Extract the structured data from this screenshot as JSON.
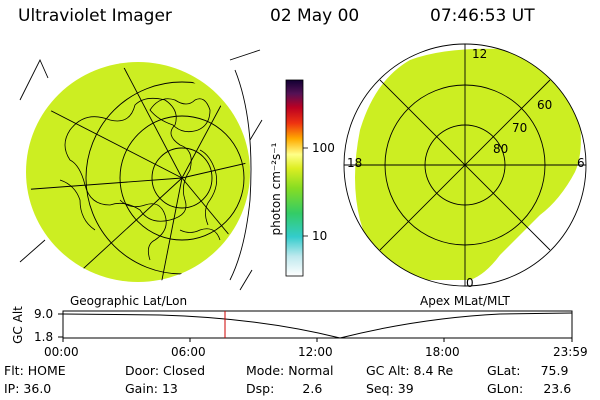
{
  "header": {
    "instrument": "Ultraviolet Imager",
    "date": "02 May 00",
    "time": "07:46:53 UT"
  },
  "colorbar": {
    "unit_label": "photon cm⁻²s⁻¹",
    "ticks": [
      "100",
      "10"
    ]
  },
  "panels": {
    "left_title": "Geographic Lat/Lon",
    "right_title": "Apex MLat/MLT",
    "mlt_labels": [
      "12",
      "18",
      "6",
      "0"
    ],
    "lat_labels": [
      "60",
      "70",
      "80"
    ]
  },
  "altitude_plot": {
    "ylabel": "GC Alt",
    "yticks": [
      "9.0",
      "1.8"
    ],
    "xticks": [
      "00:00",
      "06:00",
      "12:00",
      "18:00",
      "23:59"
    ],
    "current_time_marker": "07:46:53"
  },
  "status": {
    "flt": {
      "label": "Flt:",
      "value": "HOME"
    },
    "ip": {
      "label": "IP:",
      "value": "36.0"
    },
    "door": {
      "label": "Door:",
      "value": "Closed"
    },
    "gain": {
      "label": "Gain:",
      "value": "13"
    },
    "mode": {
      "label": "Mode:",
      "value": "Normal"
    },
    "dsp": {
      "label": "Dsp:",
      "value": "2.6"
    },
    "gcalt": {
      "label": "GC Alt:",
      "value": "8.4 Re"
    },
    "seq": {
      "label": "Seq:",
      "value": "39"
    },
    "glat": {
      "label": "GLat:",
      "value": "75.9"
    },
    "glon": {
      "label": "GLon:",
      "value": "23.6"
    }
  },
  "colors": {
    "image_fill": "#ccee22",
    "marker": "#cc0000"
  }
}
